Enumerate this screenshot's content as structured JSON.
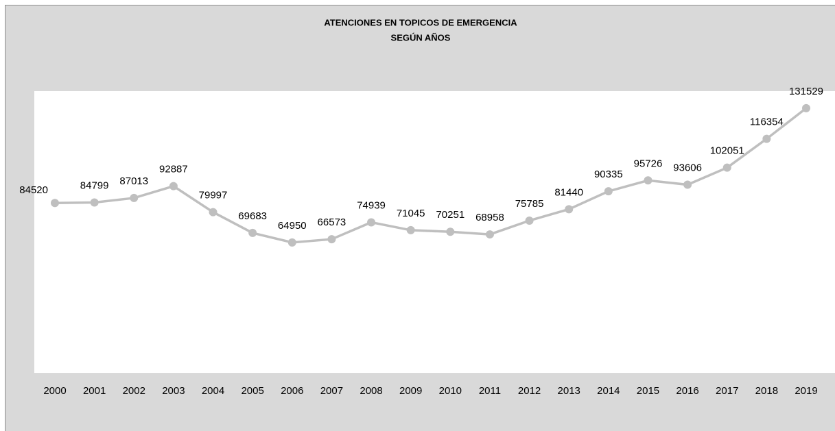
{
  "chart_data": {
    "type": "line",
    "title": "ATENCIONES EN TOPICOS DE EMERGENCIA",
    "subtitle": "SEGÚN AÑOS",
    "categories": [
      "2000",
      "2001",
      "2002",
      "2003",
      "2004",
      "2005",
      "2006",
      "2007",
      "2008",
      "2009",
      "2010",
      "2011",
      "2012",
      "2013",
      "2014",
      "2015",
      "2016",
      "2017",
      "2018",
      "2019"
    ],
    "values": [
      84520,
      84799,
      87013,
      92887,
      79997,
      69683,
      64950,
      66573,
      74939,
      71045,
      70251,
      68958,
      75785,
      81440,
      90335,
      95726,
      93606,
      102051,
      116354,
      131529
    ],
    "color": "#bfbfbf",
    "ylim": [
      0,
      140000
    ],
    "grid": false
  }
}
